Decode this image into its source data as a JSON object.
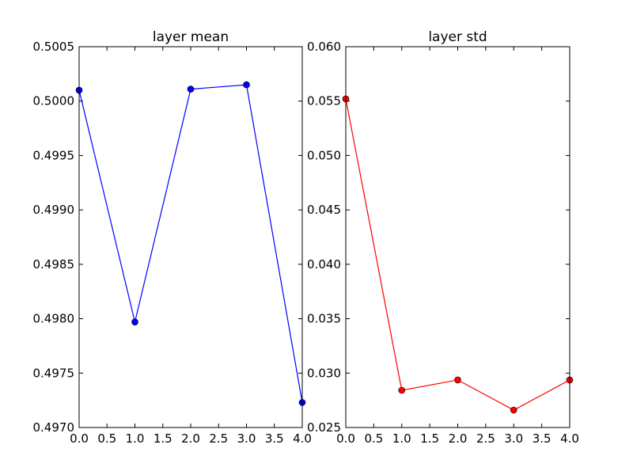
{
  "chart_data": [
    {
      "type": "line",
      "title": "layer mean",
      "x": [
        0,
        1,
        2,
        3,
        4
      ],
      "series": [
        {
          "color": "#0000ff",
          "values": [
            0.5001,
            0.49797,
            0.50011,
            0.50015,
            0.49723
          ]
        }
      ],
      "xlim": [
        0,
        4
      ],
      "xticks": [
        {
          "value": 0,
          "label": "0.0"
        },
        0.5,
        {
          "value": 1,
          "label": "1.0"
        },
        1.5,
        {
          "value": 2,
          "label": "2.0"
        },
        2.5,
        {
          "value": 3,
          "label": "3.0"
        },
        3.5,
        {
          "value": 4,
          "label": "4.0"
        }
      ],
      "ylim": [
        0.497,
        0.5005
      ],
      "yticks": [
        {
          "value": 0.497,
          "label": "0.4970"
        },
        0.4975,
        {
          "value": 0.498,
          "label": "0.4980"
        },
        0.4985,
        {
          "value": 0.499,
          "label": "0.4990"
        },
        0.4995,
        {
          "value": 0.5,
          "label": "0.5000"
        },
        0.5005
      ]
    },
    {
      "type": "line",
      "title": "layer std",
      "x": [
        0,
        1,
        2,
        3,
        4
      ],
      "series": [
        {
          "color": "#ff0000",
          "values": [
            0.0552,
            0.02842,
            0.02937,
            0.0266,
            0.02937
          ]
        }
      ],
      "xlim": [
        0,
        4
      ],
      "xticks": [
        {
          "value": 0,
          "label": "0.0"
        },
        0.5,
        {
          "value": 1,
          "label": "1.0"
        },
        1.5,
        {
          "value": 2,
          "label": "2.0"
        },
        2.5,
        {
          "value": 3,
          "label": "3.0"
        },
        3.5,
        {
          "value": 4,
          "label": "4.0"
        }
      ],
      "ylim": [
        0.025,
        0.06
      ],
      "yticks": [
        0.025,
        {
          "value": 0.03,
          "label": "0.030"
        },
        0.035,
        {
          "value": 0.04,
          "label": "0.040"
        },
        0.045,
        {
          "value": 0.05,
          "label": "0.050"
        },
        0.055,
        {
          "value": 0.06,
          "label": "0.060"
        }
      ]
    }
  ]
}
